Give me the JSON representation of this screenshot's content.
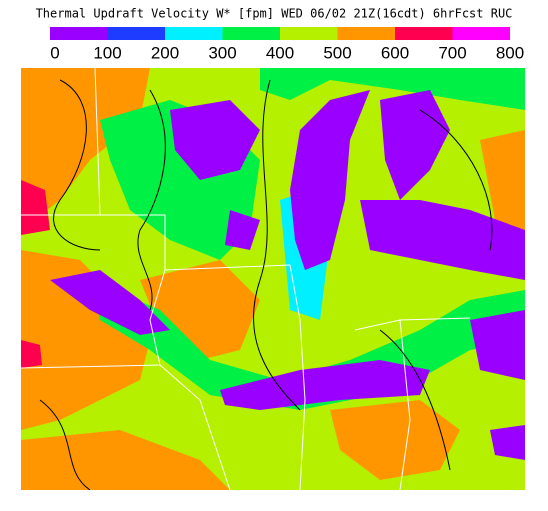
{
  "title": "Thermal Updraft Velocity W* [fpm]  WED 06/02 21Z(16cdt) 6hrFcst RUC",
  "legend": {
    "colors": [
      "#9a00ff",
      "#1e3cff",
      "#00f0ff",
      "#00f046",
      "#b4f000",
      "#ff9600",
      "#ff0050",
      "#ff00ff"
    ],
    "labels": [
      "0",
      "100",
      "200",
      "300",
      "400",
      "500",
      "600",
      "700",
      "800"
    ]
  }
}
